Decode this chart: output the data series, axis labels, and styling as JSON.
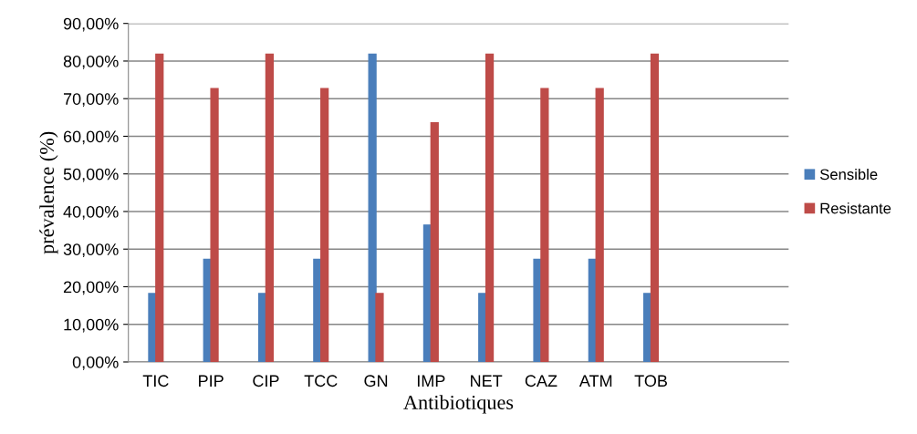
{
  "chart_data": {
    "type": "bar",
    "xlabel": "Antibiotiques",
    "ylabel": "prévalence (%)",
    "categories": [
      "TIC",
      "PIP",
      "CIP",
      "TCC",
      "GN",
      "IMP",
      "NET",
      "CAZ",
      "ATM",
      "TOB",
      null,
      null
    ],
    "series": [
      {
        "name": "Sensible",
        "color": "#4a7ebb",
        "values": [
          18.2,
          27.3,
          18.2,
          27.3,
          81.8,
          36.4,
          18.2,
          27.3,
          27.3,
          18.2,
          null,
          null
        ]
      },
      {
        "name": "Resistante",
        "color": "#be4b48",
        "values": [
          81.8,
          72.7,
          81.8,
          72.7,
          18.2,
          63.6,
          81.8,
          72.7,
          72.7,
          81.8,
          null,
          null
        ]
      }
    ],
    "ylim": [
      0,
      90
    ],
    "yticks": [
      {
        "value": 0,
        "label": "0,00%"
      },
      {
        "value": 10,
        "label": "10,00%"
      },
      {
        "value": 20,
        "label": "20,00%"
      },
      {
        "value": 30,
        "label": "30,00%"
      },
      {
        "value": 40,
        "label": "40,00%"
      },
      {
        "value": 50,
        "label": "50,00%"
      },
      {
        "value": 60,
        "label": "60,00%"
      },
      {
        "value": 70,
        "label": "70,00%"
      },
      {
        "value": 80,
        "label": "80,00%"
      },
      {
        "value": 90,
        "label": "90,00%"
      }
    ],
    "grid": "y",
    "legend": "right"
  }
}
